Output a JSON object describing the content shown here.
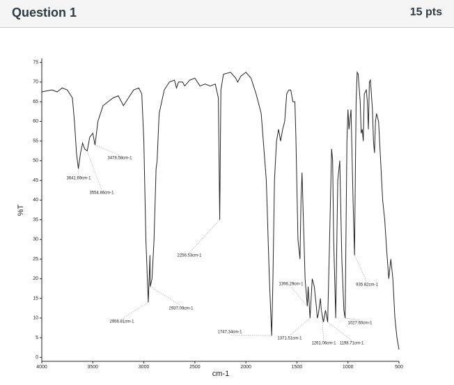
{
  "header": {
    "title": "Question 1",
    "points": "15 pts"
  },
  "chart_data": {
    "type": "line",
    "y_label": "%T",
    "x_label": "cm-1",
    "color": "#222222",
    "xlim": [
      4000,
      500
    ],
    "ylim": [
      -1,
      76
    ],
    "xticks": [
      4000,
      3500,
      3000,
      2500,
      2000,
      1500,
      1000,
      500
    ],
    "yticks": [
      0,
      5,
      10,
      15,
      20,
      25,
      30,
      35,
      40,
      45,
      50,
      55,
      60,
      65,
      70,
      75
    ],
    "x": [
      4000,
      3900,
      3850,
      3800,
      3750,
      3700,
      3680,
      3660,
      3641.69,
      3620,
      3600,
      3580,
      3554.86,
      3530,
      3500,
      3478.58,
      3450,
      3400,
      3300,
      3250,
      3200,
      3150,
      3100,
      3050,
      3020,
      3000,
      2980,
      2956.81,
      2945,
      2940,
      2937.09,
      2920,
      2900,
      2880,
      2870,
      2850,
      2800,
      2750,
      2700,
      2680,
      2660,
      2620,
      2600,
      2550,
      2500,
      2450,
      2400,
      2350,
      2300,
      2270,
      2256.53,
      2245,
      2220,
      2150,
      2100,
      2080,
      2050,
      2000,
      1950,
      1900,
      1850,
      1800,
      1770,
      1747.34,
      1735,
      1720,
      1700,
      1680,
      1660,
      1640,
      1620,
      1600,
      1580,
      1560,
      1540,
      1520,
      1510,
      1490,
      1470,
      1460,
      1450,
      1440,
      1420,
      1398.29,
      1390,
      1371.51,
      1350,
      1330,
      1310,
      1300,
      1290,
      1270,
      1261.06,
      1240,
      1220,
      1198.71,
      1180,
      1160,
      1150,
      1140,
      1120,
      1100,
      1080,
      1060,
      1040,
      1027.6,
      1010,
      1000,
      990,
      970,
      950,
      935.82,
      920,
      910,
      900,
      880,
      870,
      860,
      850,
      840,
      820,
      810,
      800,
      790,
      780,
      760,
      750,
      740,
      730,
      720,
      700,
      680,
      660,
      640,
      620,
      600,
      580,
      560,
      540,
      520,
      500
    ],
    "values": [
      67.5,
      68,
      67.5,
      68.5,
      68,
      66,
      60,
      52,
      48,
      52,
      54.5,
      53,
      52.5,
      56,
      57,
      54,
      60,
      64,
      66,
      66.5,
      64,
      66,
      68,
      68.5,
      67,
      55,
      30,
      14,
      22,
      26,
      18,
      20,
      30,
      48,
      50,
      62,
      68,
      70,
      70.5,
      68.5,
      70,
      70,
      69,
      70.5,
      71,
      69,
      69.5,
      69,
      69.5,
      66,
      35,
      68,
      72,
      72.5,
      71,
      70,
      71.5,
      72.5,
      71,
      67,
      62,
      45,
      20,
      5.5,
      20,
      45,
      55,
      58,
      55,
      58,
      60,
      67,
      68,
      68,
      65,
      65,
      56,
      30,
      25,
      40,
      47,
      38,
      20,
      13,
      18,
      10,
      20,
      18,
      13,
      10,
      11,
      15,
      12,
      9,
      12,
      9,
      30,
      53,
      50,
      30,
      10,
      45,
      50,
      25,
      12,
      10,
      55,
      63,
      58,
      63,
      40,
      26,
      65,
      72.5,
      72,
      65,
      57,
      58,
      55,
      67,
      68,
      65,
      58,
      70,
      70.5,
      63,
      55,
      52,
      60,
      62,
      60,
      50,
      40,
      35,
      27,
      20,
      25,
      20,
      10,
      5,
      2
    ],
    "annotations": [
      {
        "text": "3641.69cm-1",
        "x": 3641.69,
        "y": 48
      },
      {
        "text": "3554.86cm-1",
        "x": 3554.86,
        "y": 52.5
      },
      {
        "text": "3478.58cm-1",
        "x": 3478.58,
        "y": 54
      },
      {
        "text": "2956.81cm-1",
        "x": 2956.81,
        "y": 14
      },
      {
        "text": "2937.09cm-1",
        "x": 2937.09,
        "y": 18
      },
      {
        "text": "2256.53cm-1",
        "x": 2256.53,
        "y": 35
      },
      {
        "text": "1747.34cm-1",
        "x": 1747.34,
        "y": 5.5
      },
      {
        "text": "1398.29cm-1",
        "x": 1398.29,
        "y": 13
      },
      {
        "text": "1371.51cm-1",
        "x": 1371.51,
        "y": 10
      },
      {
        "text": "1261.06cm-1",
        "x": 1261.06,
        "y": 12
      },
      {
        "text": "1198.71cm-1",
        "x": 1198.71,
        "y": 9
      },
      {
        "text": "1027.60cm-1",
        "x": 1027.6,
        "y": 10
      },
      {
        "text": "935.82cm-1",
        "x": 935.82,
        "y": 26
      }
    ]
  }
}
